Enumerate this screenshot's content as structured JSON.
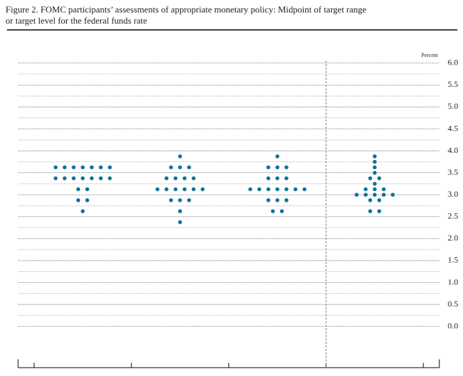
{
  "chart_data": {
    "type": "dot",
    "title": [
      "Figure 2. FOMC participants’ assessments of appropriate monetary policy: Midpoint of target range",
      "or target level for the federal funds rate"
    ],
    "ylabel": "Percent",
    "categories": [
      null,
      null,
      null,
      null
    ],
    "values": [
      [
        3.625,
        3.625,
        3.625,
        3.625,
        3.625,
        3.625,
        3.625,
        3.375,
        3.375,
        3.375,
        3.375,
        3.375,
        3.375,
        3.375,
        3.125,
        3.125,
        2.875,
        2.875,
        2.625
      ],
      [
        3.875,
        3.625,
        3.625,
        3.625,
        3.375,
        3.375,
        3.375,
        3.375,
        3.125,
        3.125,
        3.125,
        3.125,
        3.125,
        3.125,
        2.875,
        2.875,
        2.875,
        2.625,
        2.375
      ],
      [
        3.875,
        3.625,
        3.625,
        3.625,
        3.375,
        3.375,
        3.375,
        3.125,
        3.125,
        3.125,
        3.125,
        3.125,
        3.125,
        3.125,
        2.875,
        2.875,
        2.875,
        2.625,
        2.625
      ],
      [
        3.875,
        3.75,
        3.625,
        3.5,
        3.375,
        3.375,
        3.25,
        3.125,
        3.125,
        3.125,
        3.0,
        3.0,
        3.0,
        3.0,
        3.0,
        2.875,
        2.875,
        2.625,
        2.625
      ]
    ],
    "color": "#0b7399",
    "ylim": [
      -0.75,
      6.25
    ],
    "yticks": [
      {
        "value": 0,
        "label": "0.0"
      },
      {
        "value": 0.5,
        "label": "0.5"
      },
      {
        "value": 1,
        "label": "1.0"
      },
      {
        "value": 1.5,
        "label": "1.5"
      },
      {
        "value": 2,
        "label": "2.0"
      },
      {
        "value": 2.5,
        "label": "2.5"
      },
      {
        "value": 3,
        "label": "3.0"
      },
      {
        "value": 3.5,
        "label": "3.5"
      },
      {
        "value": 4,
        "label": "4.0"
      },
      {
        "value": 4.5,
        "label": "4.5"
      },
      {
        "value": 5,
        "label": "5.0"
      },
      {
        "value": 5.5,
        "label": "5.5"
      },
      {
        "value": 6,
        "label": "6.0"
      }
    ],
    "grid": true,
    "minor_grid": true,
    "separator_before_last": true
  }
}
